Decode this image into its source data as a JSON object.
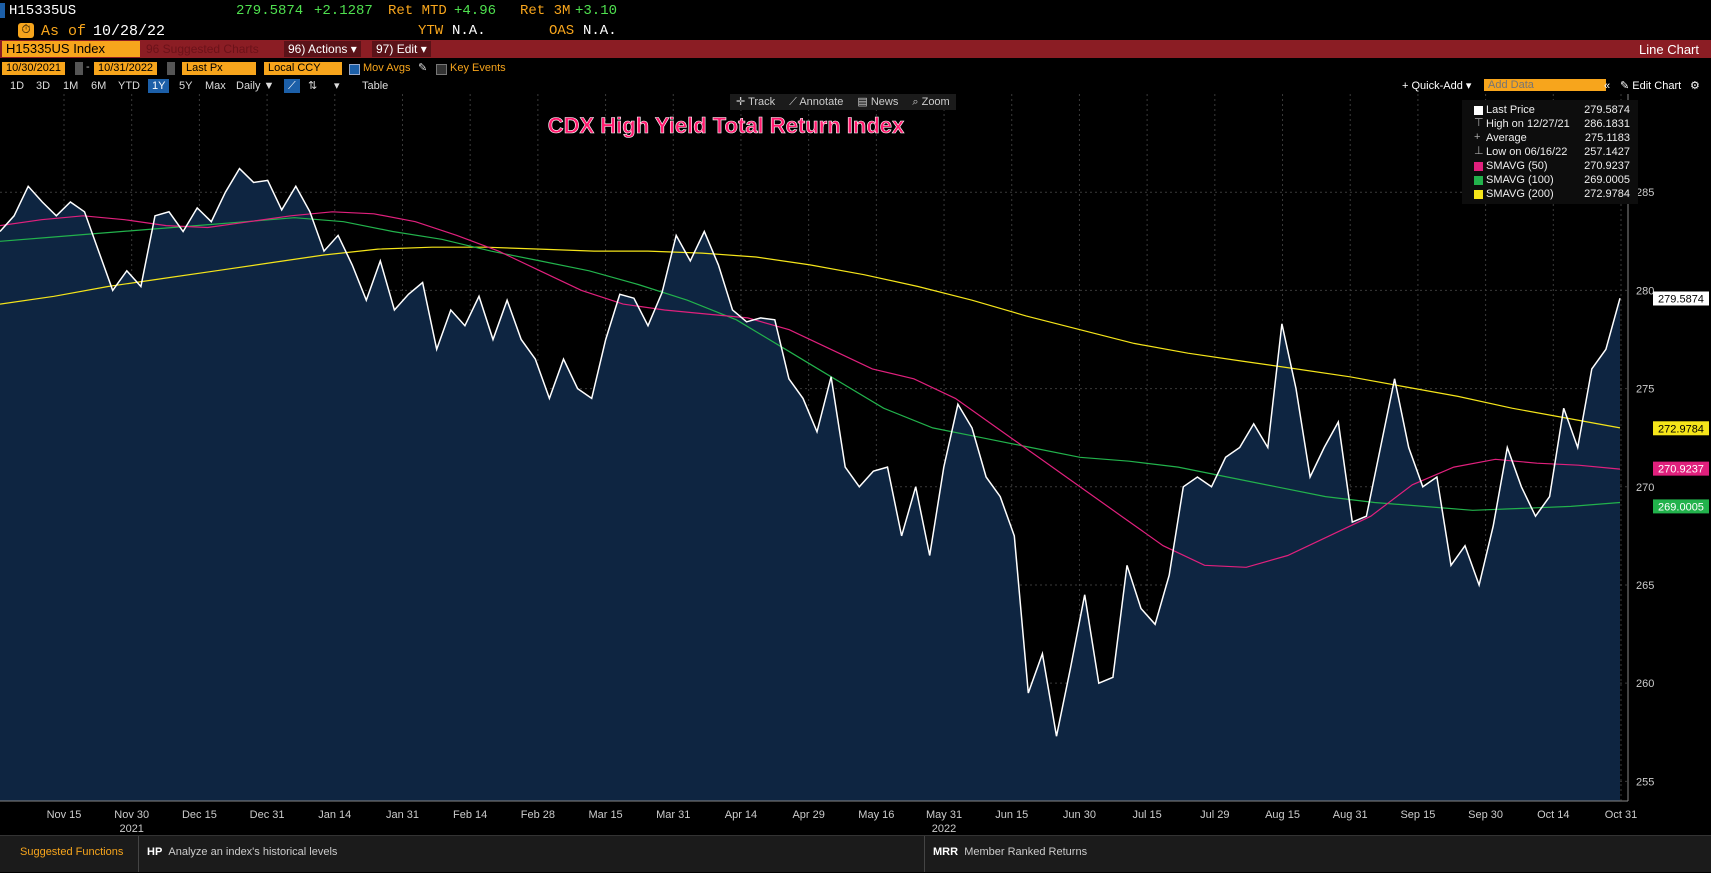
{
  "header": {
    "ticker": "H15335US",
    "last": "279.5874",
    "change": "+2.1287",
    "ret_mtd_label": "Ret MTD",
    "ret_mtd": "+4.96",
    "ret_3m_label": "Ret 3M",
    "ret_3m": "+3.10",
    "asof_label": "As of",
    "asof_date": "10/28/22",
    "ytw_label": "YTW",
    "ytw": "N.A.",
    "oas_label": "OAS",
    "oas": "N.A."
  },
  "menubar": {
    "security": "H15335US Index",
    "suggested": "96 Suggested Charts",
    "actions_num": "96)",
    "actions": "Actions",
    "edit_num": "97)",
    "edit": "Edit",
    "chart_type": "Line Chart"
  },
  "controls": {
    "start_date": "10/30/2021",
    "end_date": "10/31/2022",
    "field": "Last Px",
    "currency": "Local CCY",
    "mov_avgs": "Mov Avgs",
    "key_events": "Key Events",
    "periods": [
      "1D",
      "3D",
      "1M",
      "6M",
      "YTD",
      "1Y",
      "5Y",
      "Max"
    ],
    "selected_period": "1Y",
    "frequency": "Daily",
    "table": "Table",
    "quick_add": "+ Quick-Add",
    "add_data_placeholder": "Add Data",
    "edit_chart": "Edit Chart"
  },
  "toolbar": {
    "track": "Track",
    "annotate": "Annotate",
    "news": "News",
    "zoom": "Zoom"
  },
  "legend": {
    "items": [
      {
        "label": "Last Price",
        "value": "279.5874",
        "color": "#ffffff"
      },
      {
        "label": "High on 12/27/21",
        "value": "286.1831",
        "color": ""
      },
      {
        "label": "Average",
        "value": "275.1183",
        "color": ""
      },
      {
        "label": "Low on 06/16/22",
        "value": "257.1427",
        "color": ""
      },
      {
        "label": "SMAVG (50)",
        "value": "270.9237",
        "color": "#e0207d"
      },
      {
        "label": "SMAVG (100)",
        "value": "269.0005",
        "color": "#22b24c"
      },
      {
        "label": "SMAVG (200)",
        "value": "272.9784",
        "color": "#f5e51a"
      }
    ]
  },
  "chart_data": {
    "type": "line",
    "title": "CDX High Yield Total Return Index",
    "ylim": [
      254,
      290
    ],
    "y_ticks": [
      "255",
      "260",
      "265",
      "270",
      "275",
      "280",
      "285"
    ],
    "x_ticks": [
      "Nov 15",
      "Nov 30",
      "Dec 15",
      "Dec 31",
      "Jan 14",
      "Jan 31",
      "Feb 14",
      "Feb 28",
      "Mar 15",
      "Mar 31",
      "Apr 14",
      "Apr 29",
      "May 16",
      "May 31",
      "Jun 15",
      "Jun 30",
      "Jul 15",
      "Jul 29",
      "Aug 15",
      "Aug 31",
      "Sep 15",
      "Sep 30",
      "Oct 14",
      "Oct 31"
    ],
    "year_labels": [
      {
        "label": "2021",
        "at": 1
      },
      {
        "label": "2022",
        "at": 13
      }
    ],
    "axis_badges": [
      {
        "value": "279.5874",
        "y": 279.5874,
        "bg": "#ffffff",
        "fg": "#000000"
      },
      {
        "value": "272.9784",
        "y": 272.9784,
        "bg": "#f5e51a",
        "fg": "#000000"
      },
      {
        "value": "270.9237",
        "y": 270.9237,
        "bg": "#e0207d",
        "fg": "#ffffff"
      },
      {
        "value": "269.0005",
        "y": 269.0005,
        "bg": "#22b24c",
        "fg": "#ffffff"
      }
    ],
    "series": [
      {
        "name": "Last Price",
        "color": "#ffffff",
        "values": [
          283,
          283.8,
          285.3,
          284.5,
          283.8,
          284.5,
          284,
          282,
          280,
          281,
          280.2,
          283.8,
          284,
          283,
          284.2,
          283.5,
          285,
          286.2,
          285.5,
          285.6,
          284.1,
          285.3,
          284,
          282,
          282.8,
          281.3,
          279.5,
          281.5,
          279,
          279.8,
          280.4,
          277,
          279,
          278.2,
          279.7,
          277.5,
          279.5,
          277.5,
          276.5,
          274.5,
          276.5,
          275,
          274.5,
          277.5,
          279.8,
          279.6,
          278.2,
          279.9,
          282.8,
          281.5,
          283,
          281.3,
          279,
          278.4,
          278.6,
          278.5,
          275.5,
          274.5,
          272.8,
          275.6,
          271,
          270,
          270.8,
          271,
          267.5,
          270,
          266.5,
          271,
          274.2,
          273,
          270.5,
          269.5,
          267.5,
          259.5,
          261.5,
          257.3,
          260.8,
          264.5,
          260,
          260.3,
          266,
          263.8,
          263,
          265.5,
          270,
          270.5,
          270,
          271.5,
          272,
          273.2,
          272,
          278.3,
          275,
          270.5,
          272,
          273.3,
          268.2,
          268.5,
          272,
          275.5,
          272,
          270,
          270.5,
          266,
          267,
          265,
          268,
          272,
          270,
          268.5,
          269.5,
          274,
          272,
          276,
          277,
          279.6
        ]
      },
      {
        "name": "SMAVG (50)",
        "color": "#e0207d",
        "values": [
          283.3,
          283.6,
          283.8,
          283.6,
          283.3,
          283.2,
          283.5,
          283.8,
          284,
          283.9,
          283.5,
          282.8,
          282,
          281,
          280,
          279.3,
          279,
          278.8,
          278.6,
          278,
          277,
          276,
          275.5,
          274.5,
          273,
          271.5,
          270,
          268.5,
          267,
          266,
          265.9,
          266.5,
          267.5,
          268.5,
          270.1,
          271,
          271.4,
          271.2,
          271.1,
          270.9
        ]
      },
      {
        "name": "SMAVG (100)",
        "color": "#22b24c",
        "values": [
          282.5,
          282.7,
          282.9,
          283.1,
          283.3,
          283.5,
          283.7,
          283.5,
          283,
          282.6,
          282,
          281.5,
          281,
          280.3,
          279.5,
          278.5,
          277,
          275.5,
          274,
          273,
          272.5,
          272,
          271.5,
          271.3,
          271,
          270.5,
          270,
          269.5,
          269.2,
          269,
          268.8,
          268.9,
          269,
          269.2
        ]
      },
      {
        "name": "SMAVG (200)",
        "color": "#f5e51a",
        "values": [
          279.3,
          279.7,
          280.2,
          280.6,
          281,
          281.4,
          281.8,
          282.1,
          282.2,
          282.2,
          282.1,
          282,
          282,
          281.9,
          281.7,
          281.3,
          280.8,
          280.2,
          279.5,
          278.7,
          278,
          277.3,
          276.8,
          276.4,
          276,
          275.6,
          275.1,
          274.6,
          274,
          273.5,
          273
        ]
      }
    ]
  },
  "bottom": {
    "suggested_functions": "Suggested Functions",
    "hp_code": "HP",
    "hp_desc": "Analyze an index's historical levels",
    "mrr_code": "MRR",
    "mrr_desc": "Member Ranked Returns"
  }
}
